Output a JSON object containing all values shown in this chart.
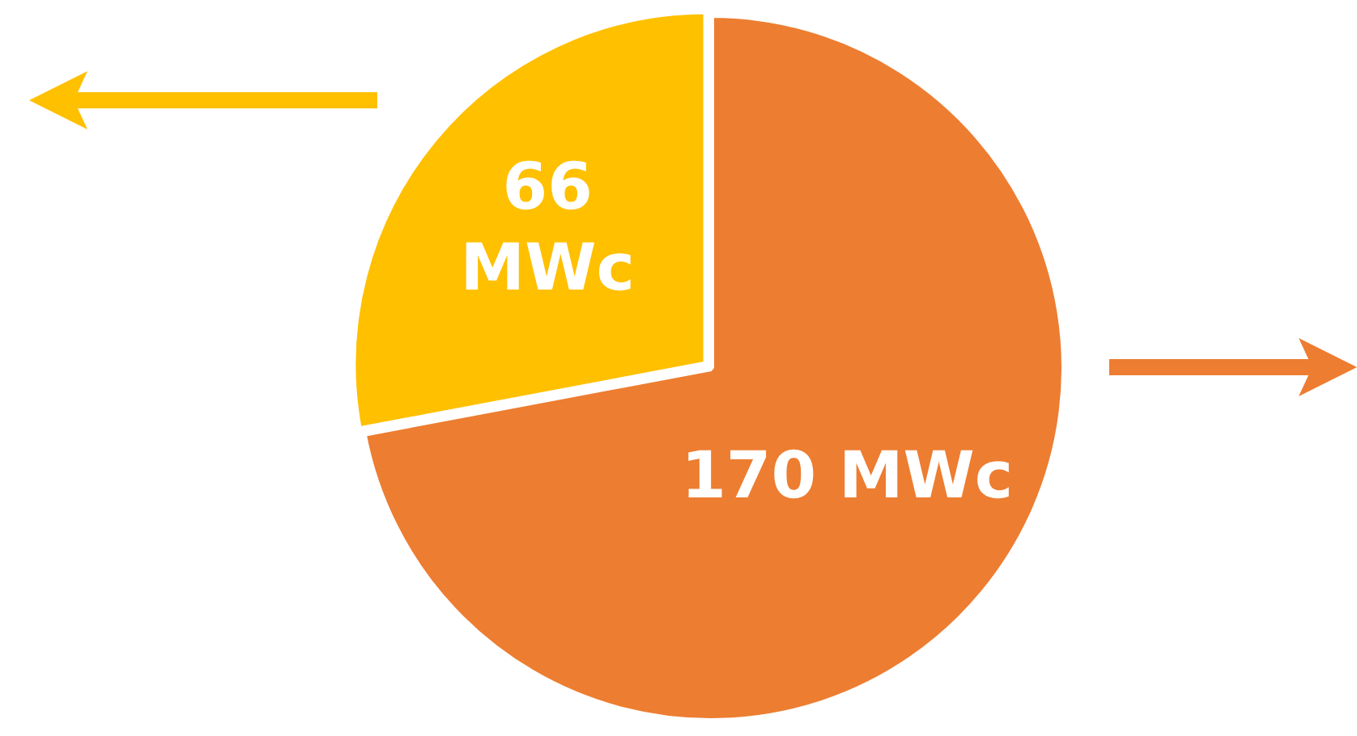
{
  "chart_data": {
    "type": "pie",
    "categories": [
      null,
      null
    ],
    "values": [
      170,
      66
    ],
    "colors": [
      "#ed7d31",
      "#ffc000"
    ],
    "value_labels": [
      "170 MWc",
      "66 MWc"
    ],
    "legend": false
  }
}
